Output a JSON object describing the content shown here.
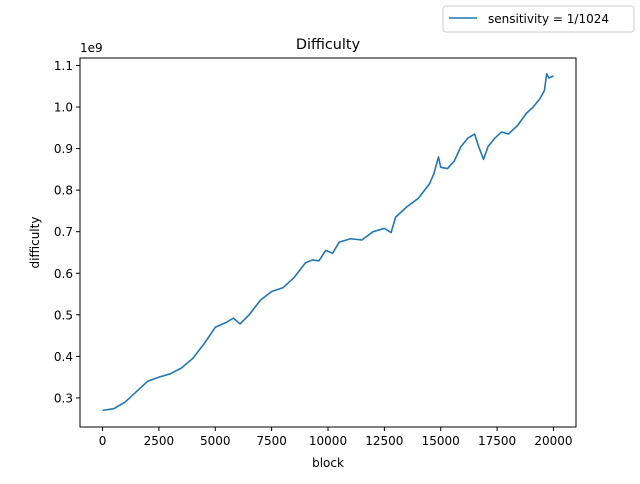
{
  "chart_data": {
    "type": "line",
    "title": "Difficulty",
    "xlabel": "block",
    "ylabel": "difficulty",
    "y_offset_label": "1e9",
    "xlim": [
      -1000,
      21000
    ],
    "ylim": [
      0.23,
      1.118
    ],
    "x_ticks": [
      0,
      2500,
      5000,
      7500,
      10000,
      12500,
      15000,
      17500,
      20000
    ],
    "x_tick_labels": [
      "0",
      "2500",
      "5000",
      "7500",
      "10000",
      "12500",
      "15000",
      "17500",
      "20000"
    ],
    "y_ticks": [
      0.3,
      0.4,
      0.5,
      0.6,
      0.7,
      0.8,
      0.9,
      1.0,
      1.1
    ],
    "y_tick_labels": [
      "0.3",
      "0.4",
      "0.5",
      "0.6",
      "0.7",
      "0.8",
      "0.9",
      "1.0",
      "1.1"
    ],
    "grid": false,
    "legend": {
      "placement": "top-right",
      "entries": [
        "sensitivity = 1/1024"
      ]
    },
    "colors": {
      "series": "#1f77b4",
      "axes": "#000000",
      "background": "#ffffff"
    },
    "series": [
      {
        "name": "sensitivity = 1/1024",
        "x": [
          0,
          500,
          1000,
          1500,
          2000,
          2500,
          3000,
          3500,
          4000,
          4500,
          5000,
          5500,
          5800,
          6100,
          6500,
          7000,
          7500,
          8000,
          8500,
          9000,
          9300,
          9600,
          9900,
          10200,
          10500,
          11000,
          11500,
          12000,
          12500,
          12800,
          13000,
          13500,
          14000,
          14500,
          14700,
          14900,
          15000,
          15300,
          15600,
          15900,
          16200,
          16500,
          16700,
          16900,
          17100,
          17400,
          17700,
          18000,
          18400,
          18800,
          19100,
          19400,
          19600,
          19700,
          19800,
          20000
        ],
        "y": [
          0.27,
          0.274,
          0.29,
          0.315,
          0.34,
          0.35,
          0.358,
          0.372,
          0.395,
          0.43,
          0.47,
          0.482,
          0.492,
          0.478,
          0.5,
          0.535,
          0.556,
          0.565,
          0.59,
          0.625,
          0.632,
          0.63,
          0.655,
          0.648,
          0.675,
          0.683,
          0.68,
          0.7,
          0.708,
          0.698,
          0.735,
          0.76,
          0.78,
          0.815,
          0.84,
          0.88,
          0.855,
          0.852,
          0.87,
          0.905,
          0.925,
          0.935,
          0.902,
          0.874,
          0.905,
          0.925,
          0.94,
          0.935,
          0.955,
          0.985,
          1.0,
          1.02,
          1.04,
          1.08,
          1.07,
          1.075
        ]
      }
    ]
  }
}
